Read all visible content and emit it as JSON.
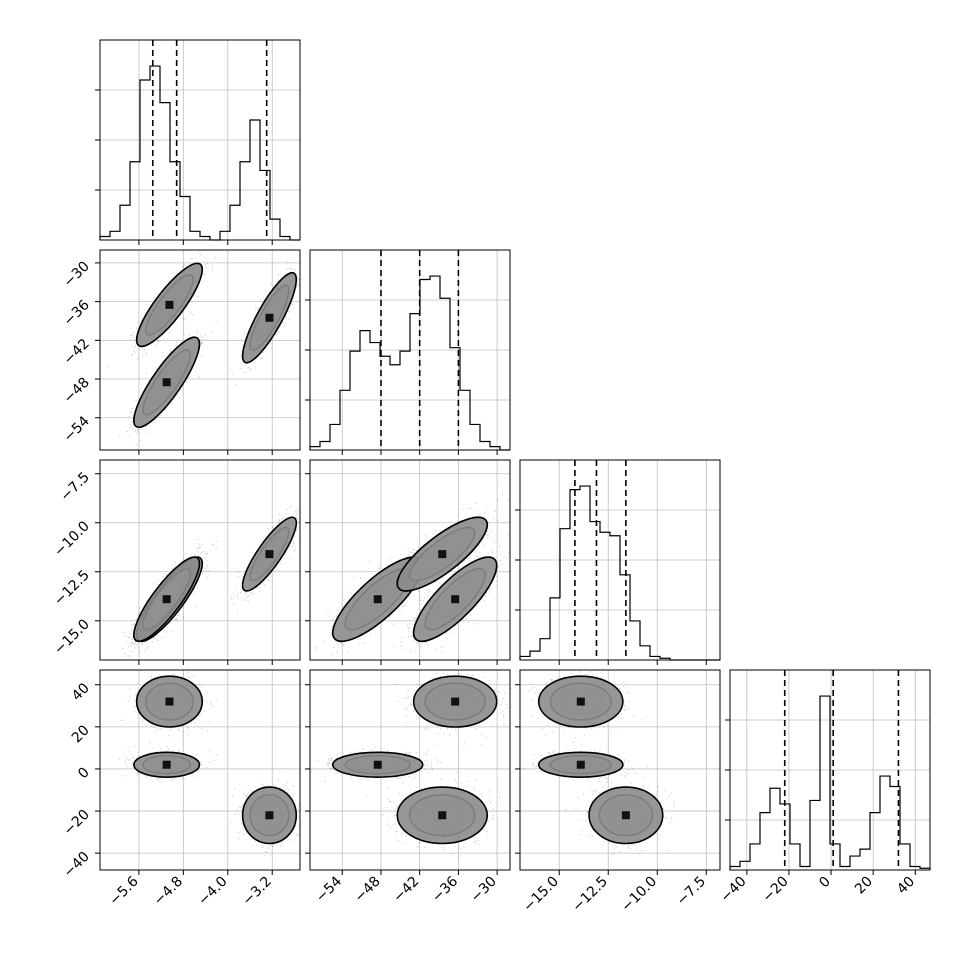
{
  "chart_data": {
    "type": "corner",
    "title": "",
    "grid": true,
    "parameters": [
      {
        "range": [
          -6.3,
          -2.7
        ],
        "ticks": [
          -5.6,
          -4.8,
          -4.0,
          -3.2
        ],
        "tick_labels": [
          "−5.6",
          "−4.8",
          "−4.0",
          "−3.2"
        ],
        "quantiles": [
          -5.35,
          -4.92,
          -3.3
        ]
      },
      {
        "range": [
          -59,
          -28
        ],
        "ticks": [
          -54,
          -48,
          -42,
          -36,
          -30
        ],
        "tick_labels": [
          "−54",
          "−48",
          "−42",
          "−36",
          "−30"
        ],
        "quantiles": [
          -48,
          -42,
          -36
        ]
      },
      {
        "range": [
          -17.0,
          -6.8
        ],
        "ticks": [
          -15.0,
          -12.5,
          -10.0,
          -7.5
        ],
        "tick_labels": [
          "−15.0",
          "−12.5",
          "−10.0",
          "−7.5"
        ],
        "quantiles": [
          -14.2,
          -13.1,
          -11.6
        ]
      },
      {
        "range": [
          -48,
          47
        ],
        "ticks": [
          -40,
          -20,
          0,
          20,
          40
        ],
        "tick_labels": [
          "−40",
          "−20",
          "0",
          "20",
          "40"
        ],
        "quantiles": [
          -22,
          1,
          32
        ]
      }
    ],
    "histograms": [
      {
        "bins": 20,
        "counts": [
          0.02,
          0.05,
          0.2,
          0.45,
          0.92,
          1.0,
          0.79,
          0.45,
          0.25,
          0.05,
          0.02,
          0.0,
          0.05,
          0.2,
          0.45,
          0.69,
          0.4,
          0.12,
          0.02,
          0.0
        ]
      },
      {
        "bins": 20,
        "counts": [
          0.02,
          0.05,
          0.15,
          0.35,
          0.58,
          0.7,
          0.63,
          0.55,
          0.5,
          0.58,
          0.8,
          1.0,
          1.02,
          0.89,
          0.6,
          0.35,
          0.15,
          0.05,
          0.02,
          0.0
        ]
      },
      {
        "bins": 20,
        "counts": [
          0.02,
          0.05,
          0.12,
          0.35,
          0.74,
          0.96,
          0.98,
          0.78,
          0.72,
          0.7,
          0.48,
          0.22,
          0.08,
          0.02,
          0.01,
          0.0,
          0.0,
          0.0,
          0.0,
          0.0
        ]
      },
      {
        "bins": 20,
        "counts": [
          0.02,
          0.05,
          0.15,
          0.33,
          0.47,
          0.38,
          0.15,
          0.02,
          0.4,
          1.0,
          0.15,
          0.02,
          0.08,
          0.12,
          0.33,
          0.54,
          0.48,
          0.15,
          0.02,
          0.01
        ]
      }
    ],
    "modes": [
      {
        "w": 0.33,
        "mean": [
          -5.05,
          -36.5,
          -13.9,
          32.0
        ],
        "sd": [
          0.22,
          2.4,
          0.8,
          4.5
        ]
      },
      {
        "w": 0.34,
        "mean": [
          -5.1,
          -48.5,
          -13.9,
          2.0
        ],
        "sd": [
          0.22,
          2.6,
          0.8,
          2.2
        ]
      },
      {
        "w": 0.33,
        "mean": [
          -3.25,
          -38.5,
          -11.6,
          -22.0
        ],
        "sd": [
          0.18,
          2.6,
          0.7,
          5.0
        ]
      }
    ],
    "pair_correlations": {
      "0-1": 0.85,
      "0-2": 0.85,
      "1-2": 0.8,
      "0-3": 0.0,
      "1-3": 0.0,
      "2-3": 0.0
    },
    "contour_levels": [
      0.9,
      0.6,
      0.3,
      0.1
    ],
    "points_per_mode": 800,
    "colors": {
      "line": "#000000",
      "grid": "#bfbfbf",
      "points": "#000000"
    }
  }
}
